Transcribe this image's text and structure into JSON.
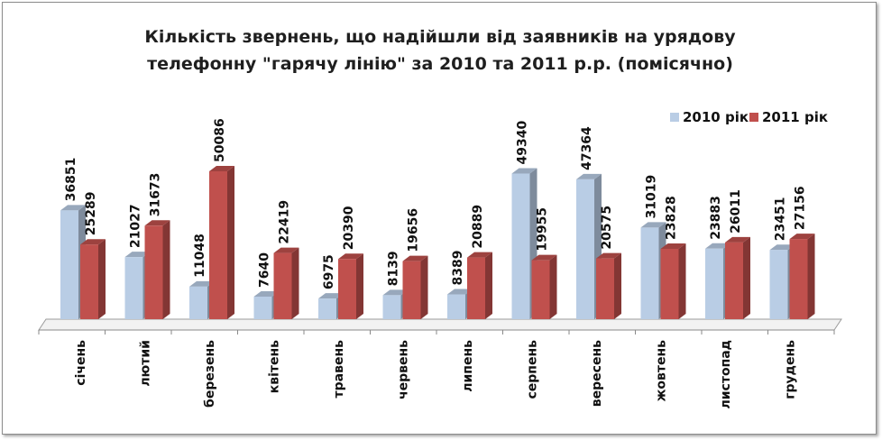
{
  "chart_data": {
    "type": "bar",
    "title_lines": [
      "Кількість звернень, що надійшли від заявників на урядову",
      "телефонну \"гарячу лінію\" за 2010 та 2011 р.р. (помісячно)"
    ],
    "xlabel": "",
    "ylabel": "",
    "ylim": [
      0,
      50086
    ],
    "grid": false,
    "legend_position": "top-right",
    "categories": [
      "січень",
      "лютий",
      "березень",
      "квітень",
      "травень",
      "червень",
      "липень",
      "серпень",
      "вересень",
      "жовтень",
      "листопад",
      "грудень"
    ],
    "series": [
      {
        "name": "2010 рік",
        "color": "#b9cde5",
        "values": [
          36851,
          21027,
          11048,
          7640,
          6975,
          8139,
          8389,
          49340,
          47364,
          31019,
          23883,
          23451
        ]
      },
      {
        "name": "2011 рік",
        "color": "#c0504d",
        "values": [
          25289,
          31673,
          50086,
          22419,
          20390,
          19656,
          20889,
          19955,
          20575,
          23828,
          26011,
          27156
        ]
      }
    ]
  }
}
